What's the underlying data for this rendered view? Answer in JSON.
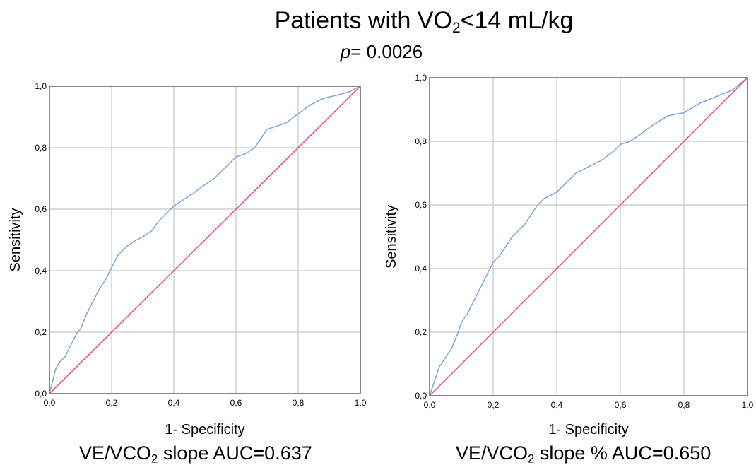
{
  "title": {
    "prefix": "Patients with VO",
    "sub": "2",
    "suffix": "<14 mL/kg"
  },
  "pvalue": {
    "letter": "p",
    "text": "= 0.0026"
  },
  "chart_data": [
    {
      "type": "line",
      "title": "",
      "xlabel": "1- Specificity",
      "ylabel": "Sensitivity",
      "xlim": [
        0,
        1
      ],
      "ylim": [
        0,
        1
      ],
      "grid": true,
      "x_ticks": [
        "0,0",
        "0,2",
        "0,4",
        "0,6",
        "0,8",
        "1,0"
      ],
      "y_ticks": [
        "0,0",
        "0,2",
        "0,4",
        "0,6",
        "0,8",
        "1,0"
      ],
      "caption": {
        "prefix": "VE/VCO",
        "sub": "2",
        "suffix": " slope  AUC=0.637"
      },
      "series": [
        {
          "color": "#7ba7dc",
          "x": [
            0,
            0.01,
            0.02,
            0.03,
            0.05,
            0.07,
            0.09,
            0.1,
            0.12,
            0.14,
            0.16,
            0.18,
            0.2,
            0.22,
            0.25,
            0.28,
            0.3,
            0.33,
            0.35,
            0.38,
            0.4,
            0.43,
            0.46,
            0.5,
            0.53,
            0.56,
            0.6,
            0.63,
            0.66,
            0.7,
            0.73,
            0.76,
            0.8,
            0.84,
            0.88,
            0.92,
            0.96,
            1.0
          ],
          "y": [
            0,
            0.04,
            0.08,
            0.1,
            0.12,
            0.16,
            0.2,
            0.21,
            0.26,
            0.3,
            0.34,
            0.37,
            0.41,
            0.45,
            0.48,
            0.5,
            0.51,
            0.53,
            0.56,
            0.59,
            0.61,
            0.63,
            0.65,
            0.68,
            0.7,
            0.73,
            0.77,
            0.78,
            0.8,
            0.86,
            0.87,
            0.88,
            0.91,
            0.94,
            0.96,
            0.97,
            0.98,
            1.0
          ]
        },
        {
          "color": "#e84a72",
          "x": [
            0,
            1
          ],
          "y": [
            0,
            1
          ]
        }
      ]
    },
    {
      "type": "line",
      "title": "",
      "xlabel": "1- Specificity",
      "ylabel": "Sensitivity",
      "xlim": [
        0,
        1
      ],
      "ylim": [
        0,
        1
      ],
      "grid": true,
      "x_ticks": [
        "0,0",
        "0,2",
        "0,4",
        "0,6",
        "0,8",
        "1,0"
      ],
      "y_ticks": [
        "0,0",
        "0,2",
        "0,4",
        "0,6",
        "0,8",
        "1,0"
      ],
      "caption": {
        "prefix": "VE/VCO",
        "sub": "2",
        "suffix": " slope %   AUC=0.650"
      },
      "series": [
        {
          "color": "#7ba7dc",
          "x": [
            0,
            0.01,
            0.02,
            0.03,
            0.05,
            0.07,
            0.09,
            0.1,
            0.12,
            0.14,
            0.16,
            0.18,
            0.2,
            0.22,
            0.24,
            0.26,
            0.28,
            0.3,
            0.32,
            0.34,
            0.36,
            0.38,
            0.4,
            0.43,
            0.46,
            0.5,
            0.54,
            0.58,
            0.6,
            0.63,
            0.66,
            0.7,
            0.75,
            0.8,
            0.85,
            0.9,
            0.95,
            1.0
          ],
          "y": [
            0,
            0.03,
            0.06,
            0.09,
            0.12,
            0.15,
            0.2,
            0.23,
            0.26,
            0.3,
            0.34,
            0.38,
            0.42,
            0.44,
            0.47,
            0.5,
            0.52,
            0.54,
            0.57,
            0.6,
            0.62,
            0.63,
            0.64,
            0.67,
            0.7,
            0.72,
            0.74,
            0.77,
            0.79,
            0.8,
            0.82,
            0.85,
            0.88,
            0.89,
            0.92,
            0.94,
            0.96,
            1.0
          ]
        },
        {
          "color": "#e84a72",
          "x": [
            0,
            1
          ],
          "y": [
            0,
            1
          ]
        }
      ]
    }
  ]
}
